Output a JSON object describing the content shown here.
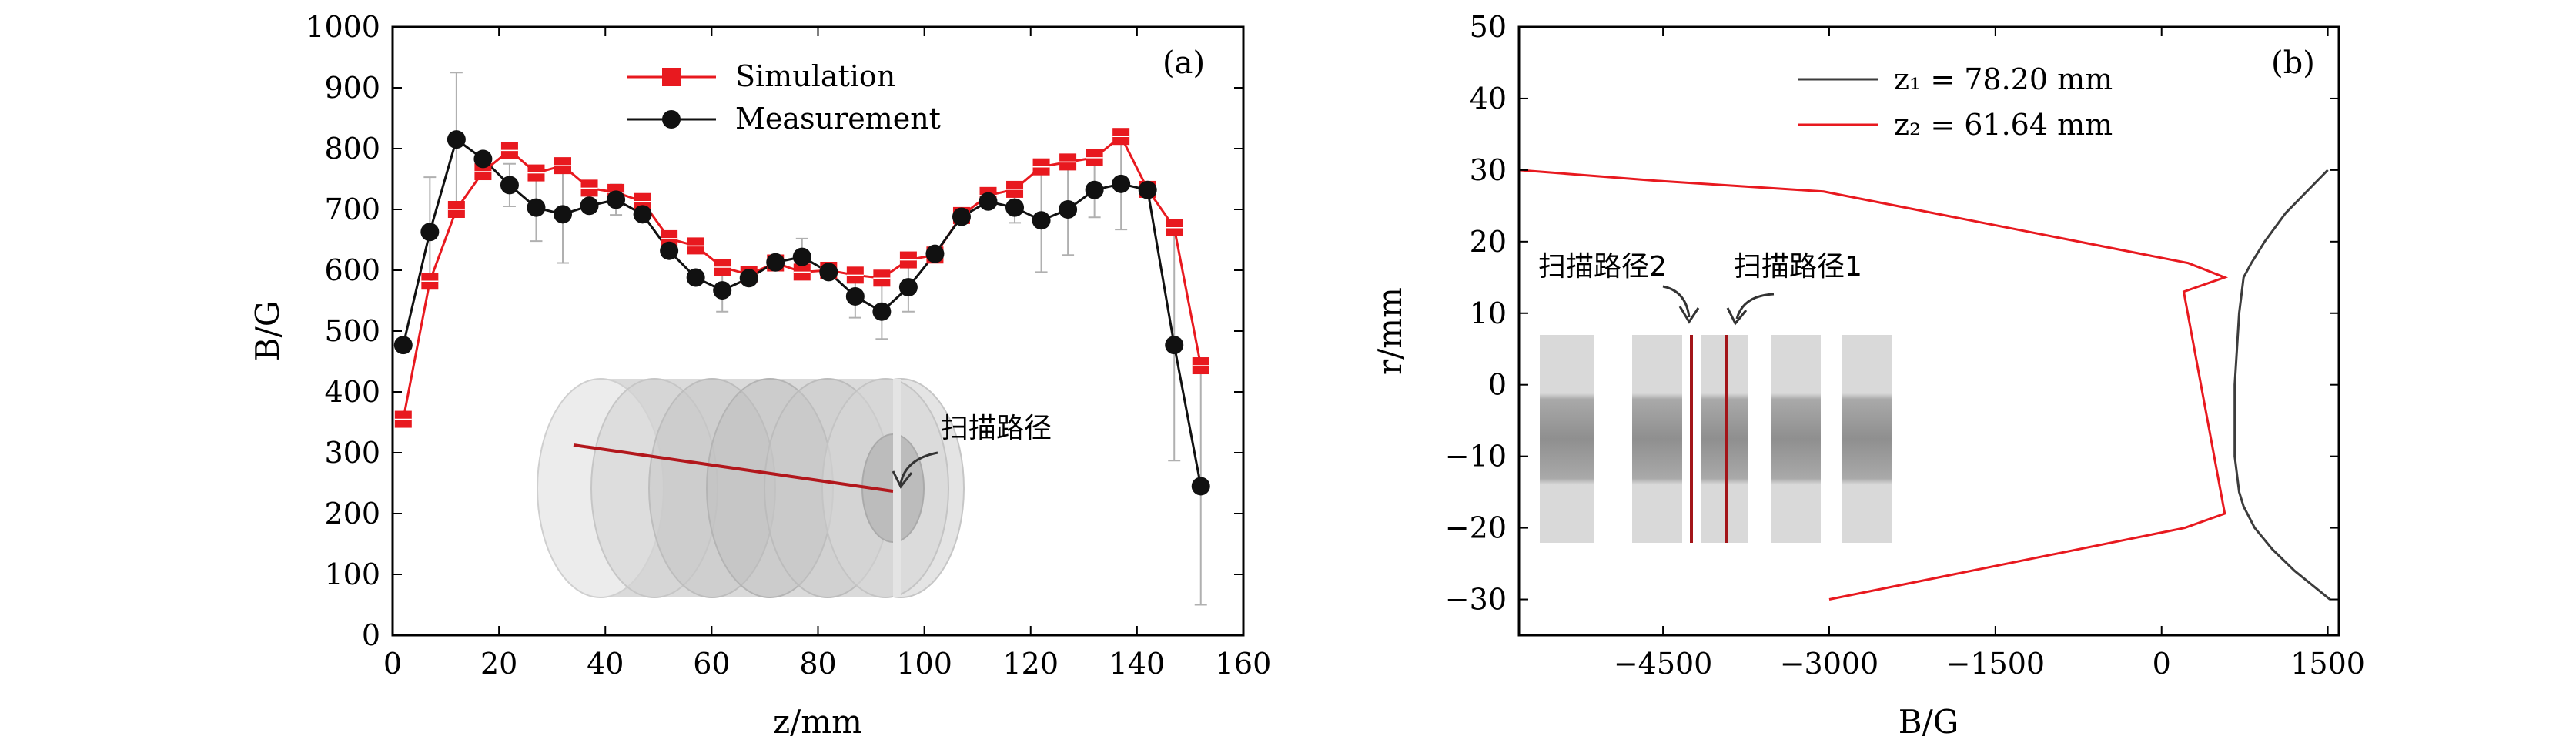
{
  "chart_data": [
    {
      "panel_label": "(a)",
      "type": "line",
      "xlabel": "z/mm",
      "ylabel": "B/G",
      "xlim": [
        0,
        160
      ],
      "ylim": [
        0,
        1000
      ],
      "xticks": [
        0,
        20,
        40,
        60,
        80,
        100,
        120,
        140,
        160
      ],
      "yticks": [
        0,
        100,
        200,
        300,
        400,
        500,
        600,
        700,
        800,
        900,
        1000
      ],
      "legend_position": "top-center",
      "series": [
        {
          "name": "Simulation",
          "color": "#e8191f",
          "marker": "square",
          "x": [
            2,
            7,
            12,
            17,
            22,
            27,
            32,
            37,
            42,
            47,
            52,
            57,
            62,
            67,
            72,
            77,
            82,
            87,
            92,
            97,
            102,
            107,
            112,
            117,
            122,
            127,
            132,
            137,
            142,
            147,
            152
          ],
          "y": [
            355,
            582,
            700,
            762,
            797,
            760,
            772,
            735,
            728,
            713,
            652,
            640,
            605,
            593,
            612,
            597,
            600,
            592,
            587,
            617,
            625,
            690,
            723,
            733,
            770,
            778,
            785,
            820,
            733,
            670,
            443
          ]
        },
        {
          "name": "Measurement",
          "color": "#111111",
          "marker": "circle",
          "x": [
            2,
            7,
            12,
            17,
            22,
            27,
            32,
            37,
            42,
            47,
            52,
            57,
            62,
            67,
            72,
            77,
            82,
            87,
            92,
            97,
            102,
            107,
            112,
            117,
            122,
            127,
            132,
            137,
            142,
            147,
            152
          ],
          "y": [
            477,
            663,
            815,
            783,
            740,
            703,
            692,
            706,
            716,
            692,
            632,
            588,
            567,
            587,
            613,
            622,
            597,
            557,
            532,
            572,
            627,
            688,
            713,
            703,
            682,
            700,
            732,
            742,
            732,
            477,
            245
          ],
          "error": [
            0,
            90,
            110,
            0,
            35,
            55,
            80,
            0,
            25,
            0,
            0,
            0,
            35,
            0,
            0,
            30,
            0,
            35,
            45,
            40,
            0,
            0,
            0,
            25,
            85,
            75,
            45,
            75,
            0,
            190,
            195
          ]
        }
      ],
      "annotations": [
        "扫描路径"
      ]
    },
    {
      "panel_label": "(b)",
      "type": "line",
      "xlabel": "B/G",
      "ylabel": "r/mm",
      "xlim": [
        -5800,
        1600
      ],
      "ylim": [
        -35,
        50
      ],
      "xticks": [
        -4500,
        -3000,
        -1500,
        0,
        1500
      ],
      "yticks": [
        -30,
        -20,
        -10,
        0,
        10,
        20,
        30,
        40,
        50
      ],
      "legend_position": "top-right",
      "series": [
        {
          "name": "z₁ = 78.20 mm",
          "color": "#3c3c3c",
          "x": [
            1500,
            1120,
            930,
            810,
            740,
            700,
            660,
            660,
            700,
            740,
            840,
            1000,
            1200,
            1520
          ],
          "y": [
            30,
            24,
            20,
            17,
            15,
            10,
            0,
            -10,
            -15,
            -17,
            -20,
            -23,
            -26,
            -30
          ],
          "data": [
            {
              "B": 1500,
              "r": 30
            },
            {
              "B": 1120,
              "r": 24
            },
            {
              "B": 930,
              "r": 20
            },
            {
              "B": 810,
              "r": 17
            },
            {
              "B": 740,
              "r": 15
            },
            {
              "B": 700,
              "r": 10
            },
            {
              "B": 660,
              "r": 0
            },
            {
              "B": 660,
              "r": -10
            },
            {
              "B": 700,
              "r": -15
            },
            {
              "B": 740,
              "r": -17
            },
            {
              "B": 840,
              "r": -20
            },
            {
              "B": 1000,
              "r": -23
            },
            {
              "B": 1200,
              "r": -26
            },
            {
              "B": 1520,
              "r": -30
            }
          ]
        },
        {
          "name": "z₂ = 61.64 mm",
          "color": "#e8191f",
          "x": [
            -5800,
            -4550,
            -3050,
            240,
            570,
            200,
            570,
            210,
            -3000
          ],
          "y": [
            30,
            28.5,
            27,
            17,
            15,
            13,
            -18,
            -20,
            -30
          ],
          "data": [
            {
              "B": -5800,
              "r": 30
            },
            {
              "B": -4550,
              "r": 28.5
            },
            {
              "B": -3050,
              "r": 27
            },
            {
              "B": 240,
              "r": 17
            },
            {
              "B": 570,
              "r": 15
            },
            {
              "B": 200,
              "r": 13
            },
            {
              "B": 570,
              "r": -18
            },
            {
              "B": 210,
              "r": -20
            },
            {
              "B": -3000,
              "r": -30
            }
          ]
        }
      ],
      "annotations": [
        "扫描路径2",
        "扫描路径1"
      ]
    }
  ]
}
